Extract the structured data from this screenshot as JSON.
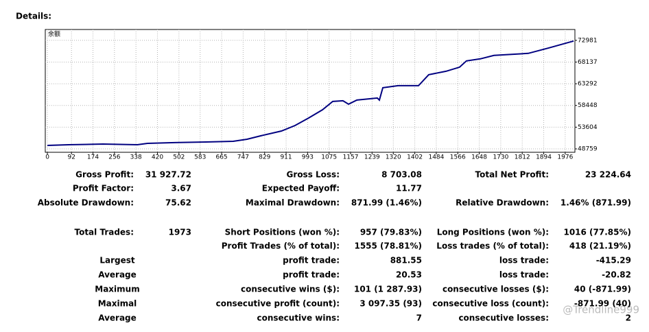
{
  "heading": "Details:",
  "chart_data": {
    "type": "line",
    "legend": "余额",
    "color": "#000080",
    "grid": true,
    "x": [
      0,
      81,
      212,
      343,
      382,
      474,
      605,
      709,
      762,
      814,
      893,
      945,
      997,
      1050,
      1089,
      1128,
      1149,
      1181,
      1259,
      1267,
      1280,
      1338,
      1416,
      1455,
      1521,
      1573,
      1599,
      1652,
      1704,
      1835,
      1914,
      2008
    ],
    "y": [
      49526,
      49679,
      49832,
      49679,
      49985,
      50139,
      50292,
      50445,
      50905,
      51672,
      52745,
      53971,
      55658,
      57497,
      59337,
      59490,
      58724,
      59643,
      60103,
      59643,
      62403,
      62863,
      62863,
      65315,
      66082,
      67002,
      68382,
      68842,
      69608,
      70068,
      71294,
      72828
    ],
    "xlim": [
      -8,
      2013
    ],
    "xticks": [
      0,
      92,
      174,
      256,
      338,
      420,
      502,
      583,
      665,
      747,
      829,
      911,
      993,
      1075,
      1157,
      1239,
      1320,
      1402,
      1484,
      1566,
      1648,
      1730,
      1812,
      1894,
      1976
    ],
    "ylim": [
      48000,
      75400
    ],
    "yticks": [
      48759,
      53604,
      58448,
      63292,
      68137,
      72981
    ]
  },
  "table": {
    "rows": [
      [
        "Gross Profit:",
        "31 927.72",
        "Gross Loss:",
        "8 703.08",
        "Total Net Profit:",
        "23 224.64"
      ],
      [
        "Profit Factor:",
        "3.67",
        "Expected Payoff:",
        "11.77",
        null,
        null
      ],
      [
        "Absolute Drawdown:",
        "75.62",
        "Maximal Drawdown:",
        "871.99 (1.46%)",
        "Relative Drawdown:",
        "1.46% (871.99)"
      ],
      [
        "Total Trades:",
        "1973",
        "Short Positions (won %):",
        "957 (79.83%)",
        "Long Positions (won %):",
        "1016 (77.85%)"
      ],
      [
        null,
        null,
        "Profit Trades (% of total):",
        "1555 (78.81%)",
        "Loss trades (% of total):",
        "418 (21.19%)"
      ],
      [
        "Largest",
        null,
        "profit trade:",
        "881.55",
        "loss trade:",
        "-415.29"
      ],
      [
        "Average",
        null,
        "profit trade:",
        "20.53",
        "loss trade:",
        "-20.82"
      ],
      [
        "Maximum",
        null,
        "consecutive wins ($):",
        "101 (1 287.93)",
        "consecutive losses ($):",
        "40 (-871.99)"
      ],
      [
        "Maximal",
        null,
        "consecutive profit (count):",
        "3 097.35 (93)",
        "consecutive loss (count):",
        "-871.99 (40)"
      ],
      [
        "Average",
        null,
        "consecutive wins:",
        "7",
        "consecutive losses:",
        "2"
      ]
    ]
  },
  "watermark": "@Trendline999"
}
